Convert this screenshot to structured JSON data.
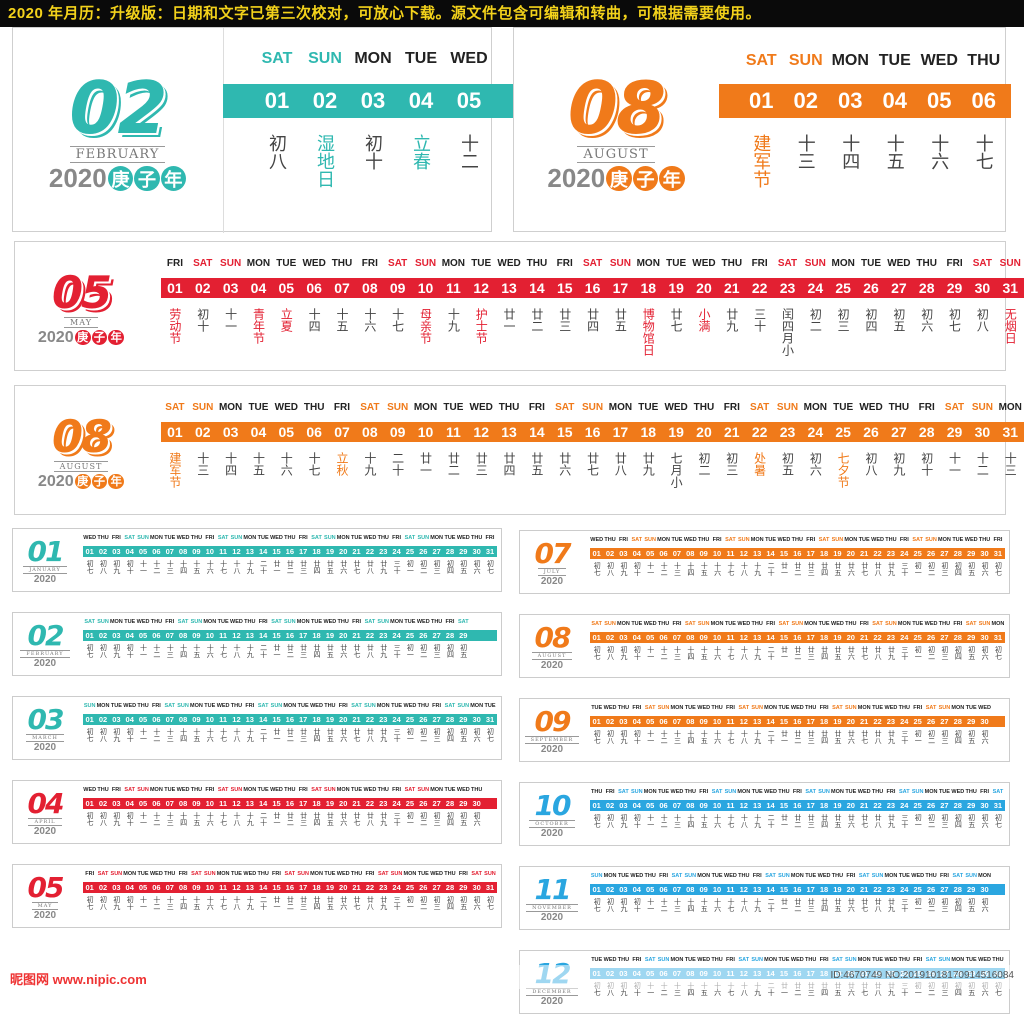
{
  "banner": "2020 年月历：升级版：日期和文字已第三次校对，可放心下载。源文件包含可编辑和转曲，可根据需要使用。",
  "colors": {
    "teal": "#2fb8b0",
    "orange": "#f07a1a",
    "red": "#e32032",
    "blue": "#2aa6e0"
  },
  "top_feb": {
    "num": "02",
    "month": "FEBRUARY",
    "year": "2020",
    "zh": [
      "庚",
      "子",
      "年"
    ],
    "days": [
      "SAT",
      "SUN",
      "MON",
      "TUE",
      "WED"
    ],
    "dates": [
      "01",
      "02",
      "03",
      "04",
      "05"
    ],
    "lunar": [
      "初八",
      "湿地日",
      "初十",
      "立春",
      "十二"
    ]
  },
  "top_aug": {
    "num": "08",
    "month": "AUGUST",
    "year": "2020",
    "zh": [
      "庚",
      "子",
      "年"
    ],
    "days": [
      "SAT",
      "SUN",
      "MON",
      "TUE",
      "WED",
      "THU"
    ],
    "dates": [
      "01",
      "02",
      "03",
      "04",
      "05",
      "06"
    ],
    "lunar": [
      "建军节",
      "十三",
      "十四",
      "十五",
      "十六",
      "十七"
    ]
  },
  "may": {
    "num": "05",
    "month": "MAY",
    "year": "2020",
    "zh": [
      "庚",
      "子",
      "年"
    ],
    "days": [
      "FRI",
      "SAT",
      "SUN",
      "MON",
      "TUE",
      "WED",
      "THU",
      "FRI",
      "SAT",
      "SUN",
      "MON",
      "TUE",
      "WED",
      "THU",
      "FRI",
      "SAT",
      "SUN",
      "MON",
      "TUE",
      "WED",
      "THU",
      "FRI",
      "SAT",
      "SUN",
      "MON",
      "TUE",
      "WED",
      "THU",
      "FRI",
      "SAT",
      "SUN"
    ],
    "lunar": [
      "劳动节",
      "初十",
      "十一",
      "青年节",
      "立夏",
      "十四",
      "十五",
      "十六",
      "十七",
      "母亲节",
      "十九",
      "护士节",
      "廿一",
      "廿二",
      "廿三",
      "廿四",
      "廿五",
      "博物馆日",
      "廿七",
      "小满",
      "廿九",
      "三十",
      "闰四月小",
      "初二",
      "初三",
      "初四",
      "初五",
      "初六",
      "初七",
      "初八",
      "无烟日"
    ],
    "red_lunar": [
      0,
      3,
      4,
      9,
      11,
      17,
      19,
      30
    ]
  },
  "aug": {
    "num": "08",
    "month": "AUGUST",
    "year": "2020",
    "zh": [
      "庚",
      "子",
      "年"
    ],
    "days": [
      "SAT",
      "SUN",
      "MON",
      "TUE",
      "WED",
      "THU",
      "FRI",
      "SAT",
      "SUN",
      "MON",
      "TUE",
      "WED",
      "THU",
      "FRI",
      "SAT",
      "SUN",
      "MON",
      "TUE",
      "WED",
      "THU",
      "FRI",
      "SAT",
      "SUN",
      "MON",
      "TUE",
      "WED",
      "THU",
      "FRI",
      "SAT",
      "SUN",
      "MON"
    ],
    "lunar": [
      "建军节",
      "十三",
      "十四",
      "十五",
      "十六",
      "十七",
      "立秋",
      "十九",
      "二十",
      "廿一",
      "廿二",
      "廿三",
      "廿四",
      "廿五",
      "廿六",
      "廿七",
      "廿八",
      "廿九",
      "七月小",
      "初二",
      "初三",
      "处暑",
      "初五",
      "初六",
      "七夕节",
      "初八",
      "初九",
      "初十",
      "十一",
      "十二",
      "十三"
    ],
    "orange_lunar": [
      0,
      6,
      21,
      24
    ]
  },
  "mini_left": [
    {
      "num": "01",
      "month": "JANUARY",
      "color": "teal",
      "first": "WED",
      "ndays": 31
    },
    {
      "num": "02",
      "month": "FEBRUARY",
      "color": "teal",
      "first": "SAT",
      "ndays": 29
    },
    {
      "num": "03",
      "month": "MARCH",
      "color": "teal",
      "first": "SUN",
      "ndays": 31
    },
    {
      "num": "04",
      "month": "APRIL",
      "color": "red",
      "first": "WED",
      "ndays": 30
    },
    {
      "num": "05",
      "month": "MAY",
      "color": "red",
      "first": "FRI",
      "ndays": 31
    }
  ],
  "mini_right": [
    {
      "num": "07",
      "month": "JULY",
      "color": "orange",
      "first": "WED",
      "ndays": 31
    },
    {
      "num": "08",
      "month": "AUGUST",
      "color": "orange",
      "first": "SAT",
      "ndays": 31
    },
    {
      "num": "09",
      "month": "SEPTEMBER",
      "color": "orange",
      "first": "TUE",
      "ndays": 30
    },
    {
      "num": "10",
      "month": "OCTOBER",
      "color": "blue",
      "first": "THU",
      "ndays": 31
    },
    {
      "num": "11",
      "month": "NOVEMBER",
      "color": "blue",
      "first": "SUN",
      "ndays": 30
    },
    {
      "num": "12",
      "month": "DECEMBER",
      "color": "blue",
      "first": "TUE",
      "ndays": 31
    }
  ],
  "mini_lunar": "初七初八初九初十十一十二十三十四十五十六十七十八十九二十廿一廿二廿三廿四廿五廿六廿七廿八廿九三十初一初二初三初四初五初六初七",
  "watermark_left": "昵图网 www.nipic.com",
  "watermark_right": "ID:4670749 NO:20191018170914516084"
}
